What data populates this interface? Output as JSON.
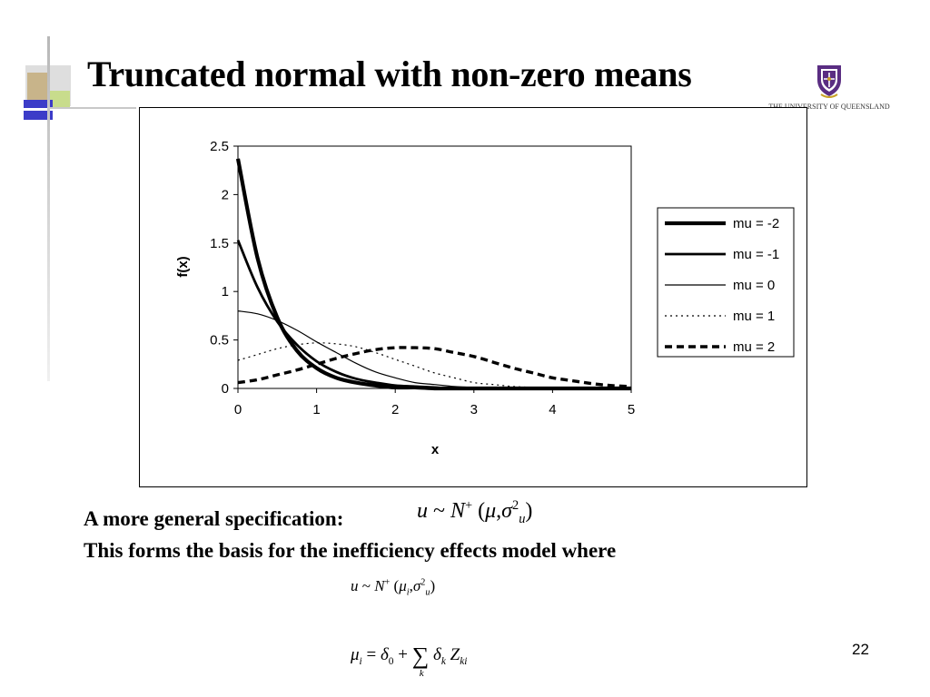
{
  "slide": {
    "title": "Truncated normal with non-zero means",
    "logo_caption": "THE UNIVERSITY OF QUEENSLAND",
    "page_number": "22",
    "accent_colors": {
      "decor_tan": "#c8b48a",
      "decor_green": "#c8dc8c",
      "decor_blue": "#3c3cc8",
      "decor_gray": "#d0d0d0",
      "logo_purple": "#5a2d82",
      "logo_gold": "#c9a227"
    }
  },
  "text": {
    "general_spec_label": "A more general specification:",
    "basis_line": "This forms the basis for the inefficiency effects model where",
    "formula1": {
      "u": "u",
      "rel": "~",
      "N": "N",
      "plus": "+",
      "open": "(",
      "mu": "μ",
      "comma": ",",
      "sigma": "σ",
      "sq": "2",
      "sub_u": "u",
      "close": ")"
    },
    "formula2": {
      "u": "u",
      "rel": "~",
      "N": "N",
      "plus": "+",
      "open": "(",
      "mu": "μ",
      "sub_i": "i",
      "comma": ",",
      "sigma": "σ",
      "sq": "2",
      "sub_u": "u",
      "close": ")"
    },
    "formula3": {
      "mu": "μ",
      "sub_i": "i",
      "eq": "=",
      "delta": "δ",
      "sub_0": "0",
      "plus": "+",
      "sum": "∑",
      "sub_k": "k",
      "delta2": "δ",
      "sub_k2": "k",
      "Z": "Z",
      "sub_ki": "ki"
    }
  },
  "chart_data": {
    "type": "line",
    "title": "",
    "xlabel": "x",
    "ylabel": "f(x)",
    "xlim": [
      0,
      5
    ],
    "ylim": [
      0,
      2.5
    ],
    "x_ticks": [
      "0",
      "1",
      "2",
      "3",
      "4",
      "5"
    ],
    "y_ticks": [
      "0",
      "0.5",
      "1",
      "1.5",
      "2",
      "2.5"
    ],
    "grid": false,
    "legend_position": "right",
    "x": [
      0,
      0.25,
      0.5,
      0.75,
      1,
      1.25,
      1.5,
      1.75,
      2,
      2.25,
      2.5,
      2.75,
      3,
      3.25,
      3.5,
      3.75,
      4,
      4.25,
      4.5,
      4.75,
      5
    ],
    "series": [
      {
        "name": "mu = -2",
        "style": "thick-solid",
        "values": [
          2.37,
          1.34,
          0.73,
          0.39,
          0.21,
          0.11,
          0.06,
          0.03,
          0.01,
          0.01,
          0.0,
          0.0,
          0.0,
          0.0,
          0.0,
          0.0,
          0.0,
          0.0,
          0.0,
          0.0,
          0.0
        ]
      },
      {
        "name": "mu = -1",
        "style": "medium-solid",
        "values": [
          1.53,
          1.04,
          0.69,
          0.45,
          0.28,
          0.17,
          0.1,
          0.06,
          0.03,
          0.02,
          0.01,
          0.0,
          0.0,
          0.0,
          0.0,
          0.0,
          0.0,
          0.0,
          0.0,
          0.0,
          0.0
        ]
      },
      {
        "name": "mu = 0",
        "style": "thin-solid",
        "values": [
          0.8,
          0.77,
          0.7,
          0.6,
          0.48,
          0.37,
          0.26,
          0.17,
          0.11,
          0.06,
          0.04,
          0.02,
          0.01,
          0.0,
          0.0,
          0.0,
          0.0,
          0.0,
          0.0,
          0.0,
          0.0
        ]
      },
      {
        "name": "mu = 1",
        "style": "thin-dotted",
        "values": [
          0.29,
          0.35,
          0.41,
          0.45,
          0.47,
          0.46,
          0.43,
          0.37,
          0.3,
          0.23,
          0.16,
          0.11,
          0.06,
          0.04,
          0.02,
          0.01,
          0.0,
          0.0,
          0.0,
          0.0,
          0.0
        ]
      },
      {
        "name": "mu = 2",
        "style": "thick-dashed",
        "values": [
          0.06,
          0.09,
          0.14,
          0.19,
          0.25,
          0.31,
          0.36,
          0.4,
          0.42,
          0.42,
          0.41,
          0.37,
          0.33,
          0.27,
          0.21,
          0.16,
          0.11,
          0.08,
          0.05,
          0.03,
          0.02
        ]
      }
    ]
  }
}
